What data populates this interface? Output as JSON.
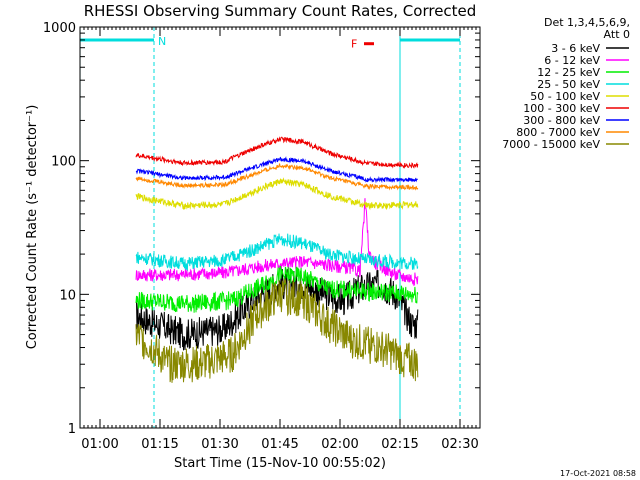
{
  "chart_data": {
    "type": "line",
    "title": "RHESSI Observing Summary Count Rates, Corrected",
    "xlabel": "Start Time (15-Nov-10 00:55:02)",
    "ylabel": "Corrected Count Rate (s⁻¹ detector⁻¹)",
    "yscale": "log",
    "ylim": [
      1,
      1000
    ],
    "xlim_minutes_from_start": [
      0,
      100
    ],
    "x_ticks": [
      {
        "label": "01:00",
        "value": 5
      },
      {
        "label": "01:15",
        "value": 20
      },
      {
        "label": "01:30",
        "value": 35
      },
      {
        "label": "01:45",
        "value": 50
      },
      {
        "label": "02:00",
        "value": 65
      },
      {
        "label": "02:15",
        "value": 80
      },
      {
        "label": "02:30",
        "value": 95
      }
    ],
    "y_ticks": [
      {
        "label": "1",
        "value": 1
      },
      {
        "label": "10",
        "value": 10
      },
      {
        "label": "100",
        "value": 100
      },
      {
        "label": "1000",
        "value": 1000
      }
    ],
    "detector_info": [
      "Det 1,3,4,5,6,9,",
      "Att 0"
    ],
    "annotations": {
      "night_label": "N",
      "flare_label": "F",
      "flare_interval": [
        71,
        73.5
      ],
      "night_intervals": [
        [
          0,
          18.5
        ],
        [
          80,
          95
        ]
      ],
      "data_interval": [
        14,
        84.5
      ]
    },
    "series": [
      {
        "name": "3 - 6 keV",
        "color": "#000000",
        "knots": [
          [
            14,
            7
          ],
          [
            19,
            6
          ],
          [
            26,
            5
          ],
          [
            36,
            5.5
          ],
          [
            44,
            9.5
          ],
          [
            50,
            12
          ],
          [
            56,
            12
          ],
          [
            61,
            10
          ],
          [
            66,
            9
          ],
          [
            70,
            11
          ],
          [
            75,
            12
          ],
          [
            79,
            10
          ],
          [
            83,
            6
          ]
        ],
        "noise": 0.12
      },
      {
        "name": "6 - 12 keV",
        "color": "#ff00ff",
        "knots": [
          [
            14,
            14
          ],
          [
            24,
            14
          ],
          [
            36,
            14.5
          ],
          [
            44,
            16
          ],
          [
            50,
            17
          ],
          [
            56,
            17.5
          ],
          [
            66,
            16
          ],
          [
            70,
            15
          ],
          [
            71.3,
            50
          ],
          [
            72.3,
            20
          ],
          [
            74,
            17
          ],
          [
            79,
            14
          ],
          [
            84,
            13
          ]
        ],
        "noise": 0.05
      },
      {
        "name": "12 - 25 keV",
        "color": "#00ee00",
        "knots": [
          [
            14,
            9
          ],
          [
            28,
            8.5
          ],
          [
            38,
            9
          ],
          [
            44,
            11
          ],
          [
            50,
            14
          ],
          [
            56,
            13.5
          ],
          [
            62,
            11
          ],
          [
            72,
            10.5
          ],
          [
            84,
            10
          ]
        ],
        "noise": 0.07
      },
      {
        "name": "25 - 50 keV",
        "color": "#00dddd",
        "knots": [
          [
            14,
            19
          ],
          [
            26,
            17
          ],
          [
            36,
            18
          ],
          [
            44,
            22
          ],
          [
            50,
            26
          ],
          [
            56,
            24
          ],
          [
            62,
            20
          ],
          [
            72,
            18
          ],
          [
            84,
            17
          ]
        ],
        "noise": 0.05
      },
      {
        "name": "50 - 100 keV",
        "color": "#dddd00",
        "knots": [
          [
            14,
            54
          ],
          [
            26,
            46
          ],
          [
            36,
            47
          ],
          [
            44,
            60
          ],
          [
            50,
            70
          ],
          [
            56,
            66
          ],
          [
            62,
            55
          ],
          [
            72,
            46
          ],
          [
            84,
            47
          ]
        ],
        "noise": 0.025
      },
      {
        "name": "100 - 300 keV",
        "color": "#ee0000",
        "knots": [
          [
            14,
            110
          ],
          [
            26,
            96
          ],
          [
            36,
            98
          ],
          [
            44,
            125
          ],
          [
            50,
            145
          ],
          [
            56,
            138
          ],
          [
            62,
            115
          ],
          [
            72,
            95
          ],
          [
            84,
            92
          ]
        ],
        "noise": 0.018
      },
      {
        "name": "300 - 800 keV",
        "color": "#0000ff",
        "knots": [
          [
            14,
            84
          ],
          [
            26,
            74
          ],
          [
            36,
            75
          ],
          [
            44,
            90
          ],
          [
            50,
            103
          ],
          [
            56,
            99
          ],
          [
            62,
            85
          ],
          [
            72,
            72
          ],
          [
            84,
            72
          ]
        ],
        "noise": 0.016
      },
      {
        "name": "800 - 7000 keV",
        "color": "#ff8800",
        "knots": [
          [
            14,
            74
          ],
          [
            26,
            65
          ],
          [
            36,
            66
          ],
          [
            44,
            80
          ],
          [
            50,
            92
          ],
          [
            56,
            88
          ],
          [
            62,
            75
          ],
          [
            72,
            64
          ],
          [
            84,
            63
          ]
        ],
        "noise": 0.016
      },
      {
        "name": "7000 - 15000 keV",
        "color": "#888800",
        "knots": [
          [
            14,
            5
          ],
          [
            18,
            4
          ],
          [
            22,
            3
          ],
          [
            30,
            3
          ],
          [
            38,
            3.5
          ],
          [
            44,
            7
          ],
          [
            50,
            10
          ],
          [
            56,
            9
          ],
          [
            62,
            6
          ],
          [
            68,
            4.5
          ],
          [
            75,
            4
          ],
          [
            84,
            3
          ]
        ],
        "noise": 0.14
      }
    ]
  },
  "footer": {
    "timestamp": "17-Oct-2021 08:58"
  }
}
